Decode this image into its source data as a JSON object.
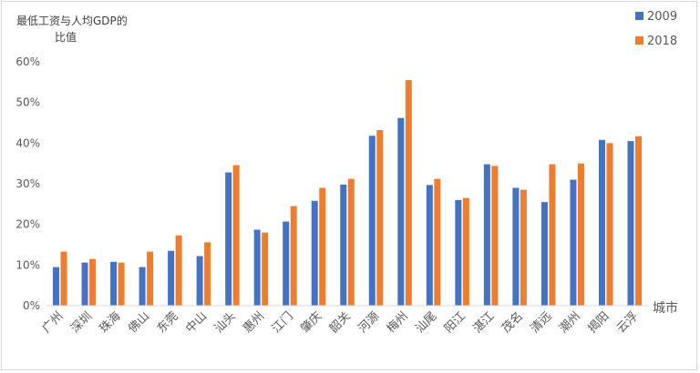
{
  "chart_data": {
    "type": "bar",
    "ylabel_lines": [
      "最低工资与人均GDP的",
      "比值"
    ],
    "xlabel": "城市",
    "categories": [
      "广州",
      "深圳",
      "珠海",
      "佛山",
      "东莞",
      "中山",
      "汕头",
      "惠州",
      "江门",
      "肇庆",
      "韶关",
      "河源",
      "梅州",
      "汕尾",
      "阳江",
      "湛江",
      "茂名",
      "清远",
      "潮州",
      "揭阳",
      "云浮"
    ],
    "series": [
      {
        "name": "2009",
        "color": "#4472c4",
        "values": [
          9.5,
          10.6,
          10.8,
          9.5,
          13.5,
          12.2,
          32.8,
          18.7,
          20.7,
          25.8,
          29.8,
          41.8,
          46.2,
          29.7,
          26.0,
          34.8,
          29.0,
          25.5,
          31.0,
          40.8,
          40.5
        ]
      },
      {
        "name": "2018",
        "color": "#ed7d31",
        "values": [
          13.3,
          11.5,
          10.6,
          13.3,
          17.3,
          15.6,
          34.6,
          18.0,
          24.5,
          29.0,
          31.2,
          43.2,
          55.5,
          31.2,
          26.5,
          34.4,
          28.5,
          34.8,
          35.0,
          40.0,
          41.7
        ]
      }
    ],
    "ylim": [
      0,
      60
    ],
    "yticks": [
      0,
      10,
      20,
      30,
      40,
      50,
      60
    ],
    "ytick_labels": [
      "0%",
      "10%",
      "20%",
      "30%",
      "40%",
      "50%",
      "60%"
    ],
    "grid": false,
    "legend_position": "top-right"
  }
}
